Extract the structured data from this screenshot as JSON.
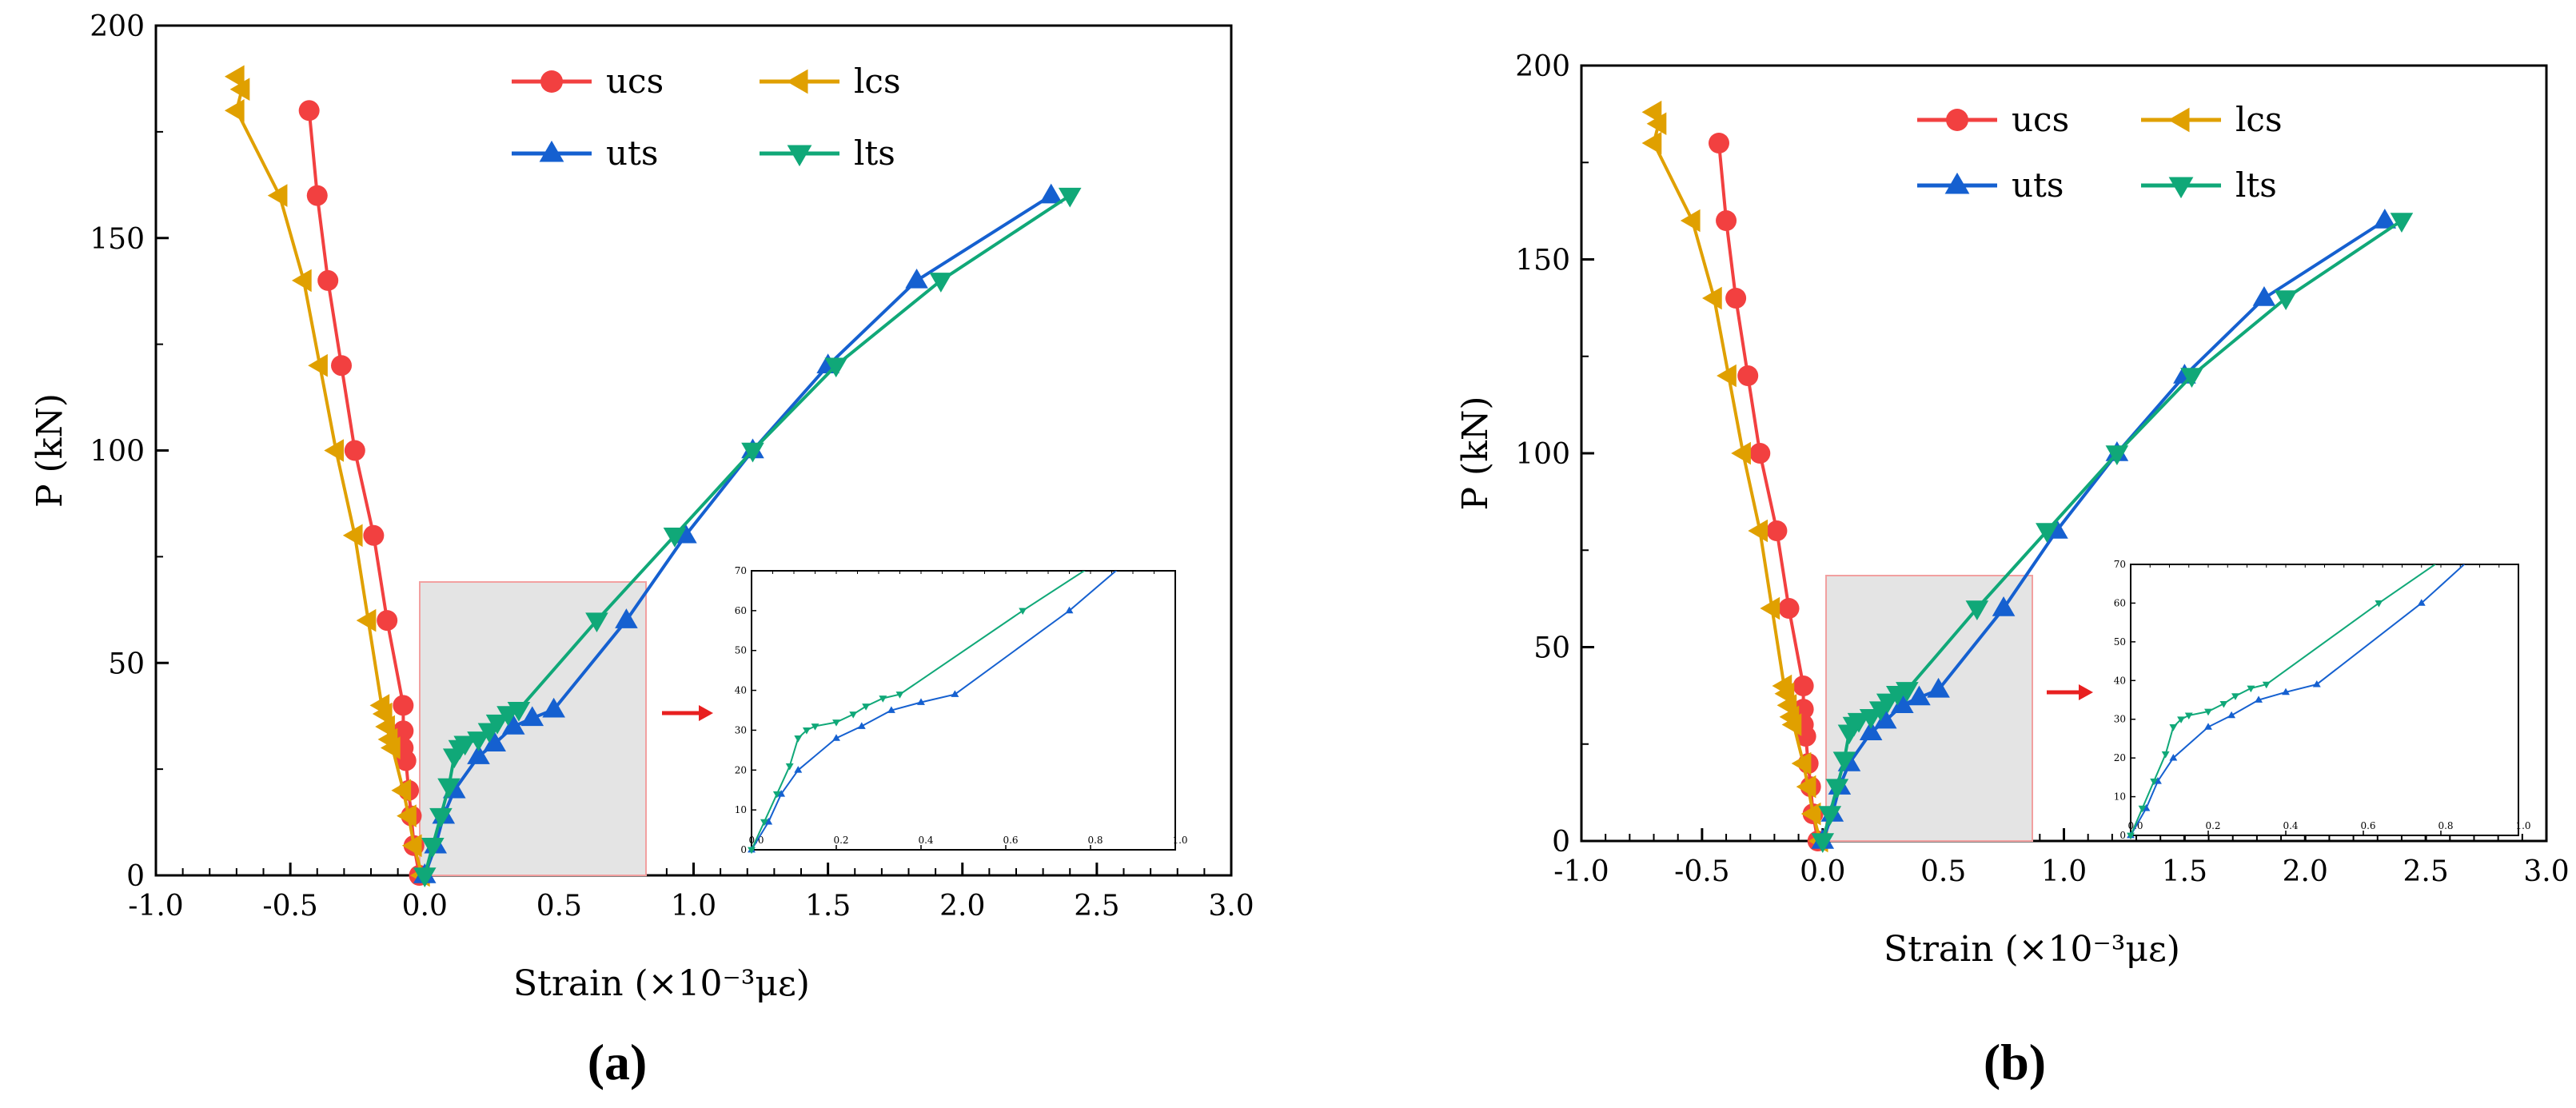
{
  "colors": {
    "ucs": "#f24040",
    "lcs": "#e0a000",
    "uts": "#1560d0",
    "lts": "#10a878",
    "arrow": "#e82020",
    "highlight_fill": "#e4e4e4",
    "highlight_stroke": "#f2a0a0"
  },
  "panels": [
    {
      "label": "(a)"
    },
    {
      "label": "(b)"
    }
  ],
  "chart_data": [
    {
      "type": "line",
      "xlabel": "Strain (×10⁻³με)",
      "ylabel": "P (kN)",
      "xlim": [
        -1.0,
        3.0
      ],
      "ylim": [
        0,
        200
      ],
      "xticks": [
        "-1.0",
        "-0.5",
        "0.0",
        "0.5",
        "1.0",
        "1.5",
        "2.0",
        "2.5",
        "3.0"
      ],
      "yticks": [
        "0",
        "50",
        "100",
        "150",
        "200"
      ],
      "legend_position": "top-center",
      "series": [
        {
          "name": "ucs",
          "marker": "circle",
          "points": [
            [
              -0.02,
              0
            ],
            [
              -0.04,
              7
            ],
            [
              -0.05,
              14
            ],
            [
              -0.06,
              20
            ],
            [
              -0.07,
              27
            ],
            [
              -0.08,
              30
            ],
            [
              -0.08,
              34
            ],
            [
              -0.08,
              40
            ],
            [
              -0.14,
              60
            ],
            [
              -0.19,
              80
            ],
            [
              -0.26,
              100
            ],
            [
              -0.31,
              120
            ],
            [
              -0.36,
              140
            ],
            [
              -0.4,
              160
            ],
            [
              -0.43,
              180
            ]
          ]
        },
        {
          "name": "lcs",
          "marker": "triangle-left",
          "points": [
            [
              -0.01,
              0
            ],
            [
              -0.04,
              7
            ],
            [
              -0.06,
              14
            ],
            [
              -0.08,
              20
            ],
            [
              -0.12,
              30
            ],
            [
              -0.13,
              32
            ],
            [
              -0.14,
              35
            ],
            [
              -0.15,
              38
            ],
            [
              -0.16,
              40
            ],
            [
              -0.21,
              60
            ],
            [
              -0.26,
              80
            ],
            [
              -0.33,
              100
            ],
            [
              -0.39,
              120
            ],
            [
              -0.45,
              140
            ],
            [
              -0.54,
              160
            ],
            [
              -0.7,
              180
            ],
            [
              -0.68,
              185
            ],
            [
              -0.7,
              188
            ]
          ]
        },
        {
          "name": "uts",
          "marker": "triangle-up",
          "points": [
            [
              0.0,
              0
            ],
            [
              0.04,
              7
            ],
            [
              0.07,
              14
            ],
            [
              0.11,
              20
            ],
            [
              0.2,
              28
            ],
            [
              0.26,
              31
            ],
            [
              0.33,
              35
            ],
            [
              0.4,
              37
            ],
            [
              0.48,
              39
            ],
            [
              0.75,
              60
            ],
            [
              0.97,
              80
            ],
            [
              1.22,
              100
            ],
            [
              1.5,
              120
            ],
            [
              1.83,
              140
            ],
            [
              2.33,
              160
            ]
          ]
        },
        {
          "name": "lts",
          "marker": "triangle-down",
          "points": [
            [
              0.0,
              0
            ],
            [
              0.03,
              7
            ],
            [
              0.06,
              14
            ],
            [
              0.09,
              21
            ],
            [
              0.11,
              28
            ],
            [
              0.13,
              30
            ],
            [
              0.15,
              31
            ],
            [
              0.2,
              32
            ],
            [
              0.24,
              34
            ],
            [
              0.27,
              36
            ],
            [
              0.31,
              38
            ],
            [
              0.35,
              39
            ],
            [
              0.64,
              60
            ],
            [
              0.93,
              80
            ],
            [
              1.22,
              100
            ],
            [
              1.53,
              120
            ],
            [
              1.92,
              140
            ],
            [
              2.4,
              160
            ]
          ]
        }
      ],
      "inset": {
        "xlim": [
          0,
          1.0
        ],
        "ylim": [
          0,
          70
        ],
        "xticks": [
          "0.0",
          "0.2",
          "0.4",
          "0.6",
          "0.8",
          "1.0"
        ],
        "yticks": [
          "0",
          "10",
          "20",
          "30",
          "40",
          "50",
          "60",
          "70"
        ],
        "series_shown": [
          "uts",
          "lts"
        ]
      }
    },
    {
      "type": "line",
      "xlabel": "Strain (×10⁻³με)",
      "ylabel": "P (kN)",
      "xlim": [
        -1.0,
        3.0
      ],
      "ylim": [
        0,
        200
      ],
      "xticks": [
        "-1.0",
        "-0.5",
        "0.0",
        "0.5",
        "1.0",
        "1.5",
        "2.0",
        "2.5",
        "3.0"
      ],
      "yticks": [
        "0",
        "50",
        "100",
        "150",
        "200"
      ],
      "legend_position": "top-center",
      "series": [
        {
          "name": "ucs",
          "marker": "circle",
          "points": [
            [
              -0.02,
              0
            ],
            [
              -0.04,
              7
            ],
            [
              -0.05,
              14
            ],
            [
              -0.06,
              20
            ],
            [
              -0.07,
              27
            ],
            [
              -0.08,
              30
            ],
            [
              -0.08,
              34
            ],
            [
              -0.08,
              40
            ],
            [
              -0.14,
              60
            ],
            [
              -0.19,
              80
            ],
            [
              -0.26,
              100
            ],
            [
              -0.31,
              120
            ],
            [
              -0.36,
              140
            ],
            [
              -0.4,
              160
            ],
            [
              -0.43,
              180
            ]
          ]
        },
        {
          "name": "lcs",
          "marker": "triangle-left",
          "points": [
            [
              -0.01,
              0
            ],
            [
              -0.04,
              7
            ],
            [
              -0.06,
              14
            ],
            [
              -0.08,
              20
            ],
            [
              -0.12,
              30
            ],
            [
              -0.13,
              32
            ],
            [
              -0.14,
              35
            ],
            [
              -0.15,
              38
            ],
            [
              -0.16,
              40
            ],
            [
              -0.21,
              60
            ],
            [
              -0.26,
              80
            ],
            [
              -0.33,
              100
            ],
            [
              -0.39,
              120
            ],
            [
              -0.45,
              140
            ],
            [
              -0.54,
              160
            ],
            [
              -0.7,
              180
            ],
            [
              -0.68,
              185
            ],
            [
              -0.7,
              188
            ]
          ]
        },
        {
          "name": "uts",
          "marker": "triangle-up",
          "points": [
            [
              0.0,
              0
            ],
            [
              0.04,
              7
            ],
            [
              0.07,
              14
            ],
            [
              0.11,
              20
            ],
            [
              0.2,
              28
            ],
            [
              0.26,
              31
            ],
            [
              0.33,
              35
            ],
            [
              0.4,
              37
            ],
            [
              0.48,
              39
            ],
            [
              0.75,
              60
            ],
            [
              0.97,
              80
            ],
            [
              1.22,
              100
            ],
            [
              1.5,
              120
            ],
            [
              1.83,
              140
            ],
            [
              2.33,
              160
            ]
          ]
        },
        {
          "name": "lts",
          "marker": "triangle-down",
          "points": [
            [
              0.0,
              0
            ],
            [
              0.03,
              7
            ],
            [
              0.06,
              14
            ],
            [
              0.09,
              21
            ],
            [
              0.11,
              28
            ],
            [
              0.13,
              30
            ],
            [
              0.15,
              31
            ],
            [
              0.2,
              32
            ],
            [
              0.24,
              34
            ],
            [
              0.27,
              36
            ],
            [
              0.31,
              38
            ],
            [
              0.35,
              39
            ],
            [
              0.64,
              60
            ],
            [
              0.93,
              80
            ],
            [
              1.22,
              100
            ],
            [
              1.53,
              120
            ],
            [
              1.92,
              140
            ],
            [
              2.4,
              160
            ]
          ]
        }
      ],
      "inset": {
        "xlim": [
          0,
          1.0
        ],
        "ylim": [
          0,
          70
        ],
        "xticks": [
          "0.0",
          "0.2",
          "0.4",
          "0.6",
          "0.8",
          "1.0"
        ],
        "yticks": [
          "0",
          "10",
          "20",
          "30",
          "40",
          "50",
          "60",
          "70"
        ],
        "series_shown": [
          "uts",
          "lts"
        ]
      }
    }
  ]
}
